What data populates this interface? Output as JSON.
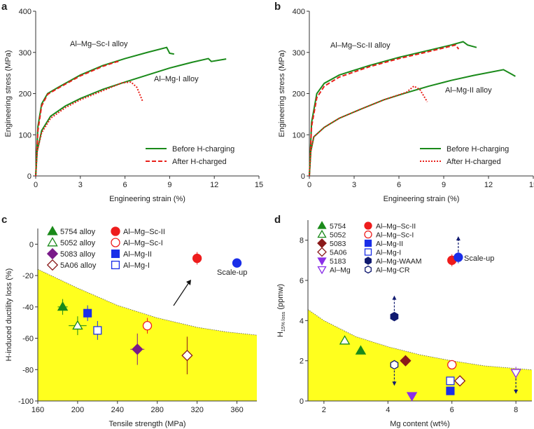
{
  "chart_data": [
    {
      "panel": "a",
      "type": "line",
      "xlabel": "Engineering strain (%)",
      "ylabel": "Engineering stress (MPa)",
      "xlim": [
        0,
        15
      ],
      "ylim": [
        0,
        400
      ],
      "xticks": [
        0,
        3,
        6,
        9,
        12,
        15
      ],
      "yticks": [
        0,
        100,
        200,
        300,
        400
      ],
      "legend": [
        "Before H-charging",
        "After H-charged"
      ],
      "legend_placement": "bottom-right",
      "annotations": [
        "Al–Mg–Sc-I alloy",
        "Al–Mg-I alloy"
      ],
      "series": [
        {
          "group": "Before H-charging",
          "color": "#1a8a1a",
          "style": "solid",
          "points": [
            [
              0,
              0
            ],
            [
              0.15,
              120
            ],
            [
              0.4,
              175
            ],
            [
              0.8,
              200
            ],
            [
              1.5,
              215
            ],
            [
              3,
              245
            ],
            [
              4.5,
              268
            ],
            [
              6,
              285
            ],
            [
              7.5,
              300
            ],
            [
              8.8,
              312
            ],
            [
              9,
              298
            ],
            [
              9.3,
              296
            ]
          ]
        },
        {
          "group": "After H-charged",
          "color": "#e8201a",
          "style": "dashed",
          "points": [
            [
              0,
              0
            ],
            [
              0.15,
              110
            ],
            [
              0.4,
              170
            ],
            [
              0.8,
              198
            ],
            [
              1.5,
              213
            ],
            [
              3,
              243
            ],
            [
              4.5,
              266
            ],
            [
              5.5,
              278
            ],
            [
              5.6,
              274
            ]
          ]
        },
        {
          "group": "Before H-charging",
          "color": "#1a8a1a",
          "style": "solid",
          "points": [
            [
              0,
              0
            ],
            [
              0.1,
              60
            ],
            [
              0.4,
              110
            ],
            [
              1,
              145
            ],
            [
              2,
              170
            ],
            [
              3,
              188
            ],
            [
              4.5,
              210
            ],
            [
              6,
              228
            ],
            [
              7.5,
              245
            ],
            [
              9,
              262
            ],
            [
              10.5,
              276
            ],
            [
              11.6,
              285
            ],
            [
              11.8,
              278
            ],
            [
              12.8,
              284
            ]
          ]
        },
        {
          "group": "After H-charged",
          "color": "#e8201a",
          "style": "dotted",
          "points": [
            [
              0,
              0
            ],
            [
              0.1,
              60
            ],
            [
              0.4,
              105
            ],
            [
              1,
              140
            ],
            [
              2,
              166
            ],
            [
              3,
              185
            ],
            [
              4.5,
              207
            ],
            [
              5.8,
              226
            ],
            [
              6.4,
              228
            ],
            [
              6.8,
              215
            ],
            [
              7.2,
              180
            ]
          ]
        }
      ]
    },
    {
      "panel": "b",
      "type": "line",
      "xlabel": "Engineering strain (%)",
      "ylabel": "Engineering stress (MPa)",
      "xlim": [
        0,
        15
      ],
      "ylim": [
        0,
        400
      ],
      "xticks": [
        0,
        3,
        6,
        9,
        12,
        15
      ],
      "yticks": [
        0,
        100,
        200,
        300,
        400
      ],
      "legend": [
        "Before H-charging",
        "After H-charged"
      ],
      "legend_placement": "bottom-right",
      "annotations": [
        "Al–Mg–Sc-II alloy",
        "Al–Mg-II alloy"
      ],
      "series": [
        {
          "group": "Before H-charging",
          "color": "#1a8a1a",
          "style": "solid",
          "points": [
            [
              0,
              0
            ],
            [
              0.15,
              130
            ],
            [
              0.5,
              200
            ],
            [
              1,
              225
            ],
            [
              2,
              245
            ],
            [
              4,
              268
            ],
            [
              6,
              288
            ],
            [
              8,
              305
            ],
            [
              9.5,
              318
            ],
            [
              10.3,
              326
            ],
            [
              10.6,
              318
            ],
            [
              11.2,
              312
            ]
          ]
        },
        {
          "group": "After H-charged",
          "color": "#e8201a",
          "style": "dashed",
          "points": [
            [
              0,
              0
            ],
            [
              0.15,
              120
            ],
            [
              0.5,
              190
            ],
            [
              1,
              218
            ],
            [
              2,
              240
            ],
            [
              4,
              265
            ],
            [
              6,
              285
            ],
            [
              8,
              302
            ],
            [
              9.8,
              318
            ],
            [
              10,
              308
            ]
          ]
        },
        {
          "group": "Before H-charging",
          "color": "#1a8a1a",
          "style": "solid",
          "points": [
            [
              0,
              0
            ],
            [
              0.1,
              60
            ],
            [
              0.3,
              95
            ],
            [
              1,
              118
            ],
            [
              2,
              140
            ],
            [
              3.5,
              163
            ],
            [
              5,
              185
            ],
            [
              6.5,
              202
            ],
            [
              8,
              218
            ],
            [
              9.5,
              232
            ],
            [
              11,
              244
            ],
            [
              13,
              258
            ],
            [
              13.5,
              248
            ],
            [
              13.8,
              242
            ]
          ]
        },
        {
          "group": "After H-charged",
          "color": "#e8201a",
          "style": "dotted",
          "points": [
            [
              0,
              0
            ],
            [
              0.1,
              60
            ],
            [
              0.3,
              95
            ],
            [
              1,
              118
            ],
            [
              2,
              140
            ],
            [
              3.5,
              163
            ],
            [
              5,
              185
            ],
            [
              6.5,
              203
            ],
            [
              7,
              218
            ],
            [
              7.4,
              210
            ],
            [
              7.9,
              180
            ]
          ]
        }
      ]
    },
    {
      "panel": "c",
      "type": "scatter",
      "xlabel": "Tensile strength (MPa)",
      "ylabel": "H-induced ductility loss (%)",
      "xlim": [
        160,
        380
      ],
      "ylim": [
        -100,
        10
      ],
      "xticks": [
        160,
        200,
        240,
        280,
        320,
        360
      ],
      "yticks": [
        -100,
        -80,
        -60,
        -40,
        -20,
        0
      ],
      "legend_placement": "top-left",
      "annotations": [
        "Scale-up"
      ],
      "region_boundary": [
        [
          160,
          -16
        ],
        [
          200,
          -28
        ],
        [
          240,
          -39
        ],
        [
          280,
          -47
        ],
        [
          320,
          -53
        ],
        [
          350,
          -56
        ],
        [
          380,
          -58
        ]
      ],
      "points": [
        {
          "name": "5754 alloy",
          "x": 185,
          "y": -40,
          "xerr": 5,
          "yerr": 5,
          "marker": "triangle-up",
          "fill": "#1a8a1a",
          "stroke": "#1a8a1a",
          "filled": true
        },
        {
          "name": "5052 alloy",
          "x": 200,
          "y": -52,
          "xerr": 9,
          "yerr": 6,
          "marker": "triangle-up",
          "fill": "#fff",
          "stroke": "#1a8a1a",
          "filled": false
        },
        {
          "name": "5083 alloy",
          "x": 260,
          "y": -67,
          "xerr": 7,
          "yerr": 10,
          "marker": "diamond",
          "fill": "#7a1a8a",
          "stroke": "#7a1a8a",
          "filled": true
        },
        {
          "name": "5A06 alloy",
          "x": 310,
          "y": -71,
          "xerr": 4,
          "yerr": 12,
          "marker": "diamond",
          "fill": "#fff",
          "stroke": "#8a1a1a",
          "filled": false
        },
        {
          "name": "Al–Mg–Sc-II",
          "x": 320,
          "y": -9,
          "xerr": 3,
          "yerr": 4,
          "marker": "circle",
          "fill": "#ee1c1c",
          "stroke": "#ee1c1c",
          "filled": true
        },
        {
          "name": "Al–Mg–Sc-I",
          "x": 270,
          "y": -52,
          "xerr": 3,
          "yerr": 5,
          "marker": "circle",
          "fill": "#fff",
          "stroke": "#ee1c1c",
          "filled": false
        },
        {
          "name": "Al–Mg-II",
          "x": 210,
          "y": -44,
          "xerr": 4,
          "yerr": 5,
          "marker": "square",
          "fill": "#1a2ee8",
          "stroke": "#1a2ee8",
          "filled": true
        },
        {
          "name": "Al–Mg-I",
          "x": 220,
          "y": -55,
          "xerr": 4,
          "yerr": 6,
          "marker": "square",
          "fill": "#fff",
          "stroke": "#1a2ee8",
          "filled": false
        },
        {
          "name": "Scale-up",
          "x": 360,
          "y": -12,
          "xerr": 4,
          "yerr": 2.5,
          "marker": "circle",
          "fill": "#1a2ee8",
          "stroke": "#1a2ee8",
          "filled": true,
          "legend": false
        }
      ]
    },
    {
      "panel": "d",
      "type": "scatter",
      "xlabel": "Mg content (wt%)",
      "ylabel": "H",
      "ylabel_sub": "15% loss",
      "ylabel_unit": " (ppmw)",
      "xlim": [
        1.5,
        8.5
      ],
      "ylim": [
        0,
        9
      ],
      "xticks": [
        2,
        4,
        6,
        8
      ],
      "yticks": [
        0,
        2,
        4,
        6,
        8
      ],
      "legend_placement": "top-left",
      "annotations": [
        "Scale-up"
      ],
      "region_boundary": [
        [
          1.5,
          4.55
        ],
        [
          2,
          4.0
        ],
        [
          3,
          3.2
        ],
        [
          4,
          2.7
        ],
        [
          5,
          2.3
        ],
        [
          6,
          2.0
        ],
        [
          7,
          1.75
        ],
        [
          8.5,
          1.55
        ]
      ],
      "points": [
        {
          "name": "5754",
          "x": 3.15,
          "y": 2.5,
          "marker": "triangle-up",
          "fill": "#1a8a1a",
          "stroke": "#1a8a1a",
          "filled": true
        },
        {
          "name": "5052",
          "x": 2.65,
          "y": 3.0,
          "marker": "triangle-up",
          "fill": "#fff",
          "stroke": "#1a8a1a",
          "filled": false
        },
        {
          "name": "5083",
          "x": 4.55,
          "y": 2.0,
          "marker": "diamond",
          "fill": "#8a1a1a",
          "stroke": "#8a1a1a",
          "filled": true
        },
        {
          "name": "5A06",
          "x": 6.25,
          "y": 1.0,
          "marker": "diamond",
          "fill": "#fff",
          "stroke": "#8a1a1a",
          "filled": false
        },
        {
          "name": "5183",
          "x": 4.75,
          "y": 0.25,
          "marker": "triangle-down",
          "fill": "#8a2ee8",
          "stroke": "#8a2ee8",
          "filled": true
        },
        {
          "name": "Al–Mg",
          "x": 8.0,
          "y": 1.4,
          "yerr": 0.3,
          "marker": "triangle-down",
          "fill": "#fff",
          "stroke": "#8a2ee8",
          "filled": false,
          "arrow": "down"
        },
        {
          "name": "Al–Mg–Sc-II",
          "x": 6.0,
          "y": 7.0,
          "yerr": 0.3,
          "marker": "circle",
          "fill": "#ee1c1c",
          "stroke": "#ee1c1c",
          "filled": true
        },
        {
          "name": "Al–Mg–Sc-I",
          "x": 6.0,
          "y": 1.8,
          "marker": "circle",
          "fill": "#fff",
          "stroke": "#ee1c1c",
          "filled": false
        },
        {
          "name": "Al–Mg-II",
          "x": 5.95,
          "y": 0.5,
          "yerr": 0.15,
          "marker": "square",
          "fill": "#1a2ee8",
          "stroke": "#1a2ee8",
          "filled": true
        },
        {
          "name": "Al–Mg-I",
          "x": 5.95,
          "y": 1.0,
          "yerr": 0.2,
          "marker": "square",
          "fill": "#fff",
          "stroke": "#1a2ee8",
          "filled": false
        },
        {
          "name": "Al–Mg-WAAM",
          "x": 4.2,
          "y": 4.2,
          "marker": "hexagon",
          "fill": "#101a70",
          "stroke": "#101a70",
          "filled": true,
          "arrow": "up"
        },
        {
          "name": "Al–Mg-CR",
          "x": 4.2,
          "y": 1.8,
          "marker": "hexagon",
          "fill": "#fff",
          "stroke": "#101a70",
          "filled": false,
          "arrow": "down"
        },
        {
          "name": "Scale-up",
          "x": 6.2,
          "y": 7.15,
          "yerr": 0.3,
          "marker": "circle",
          "fill": "#1a2ee8",
          "stroke": "#1a2ee8",
          "filled": true,
          "legend": false,
          "arrow": "up"
        }
      ]
    }
  ],
  "panel_letters": [
    "a",
    "b",
    "c",
    "d"
  ],
  "colors": {
    "region": "#ffff1e",
    "axis": "#333333"
  }
}
